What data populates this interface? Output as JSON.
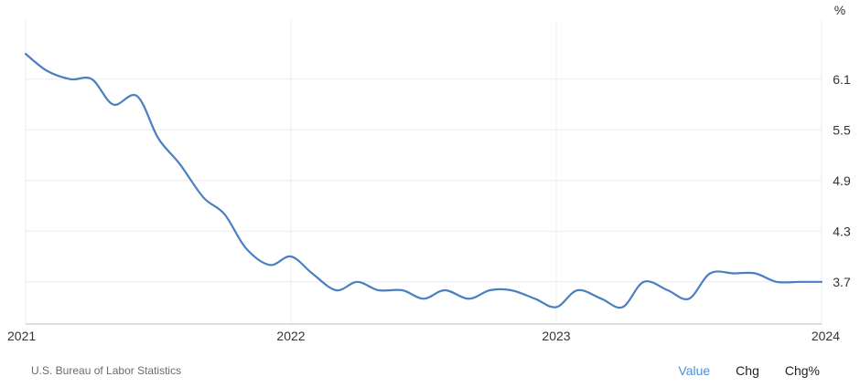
{
  "chart_data": {
    "type": "line",
    "unit": "%",
    "x_labels": [
      "2021",
      "2022",
      "2023",
      "2024"
    ],
    "y_ticks": [
      3.7,
      4.3,
      4.9,
      5.5,
      6.1
    ],
    "ylim": [
      3.2,
      6.8
    ],
    "xlim": [
      2021.0,
      2024.0
    ],
    "grid": true,
    "series": [
      {
        "color": "#4a7fc1",
        "points": [
          [
            2021.0,
            6.4
          ],
          [
            2021.08,
            6.2
          ],
          [
            2021.17,
            6.1
          ],
          [
            2021.25,
            6.1
          ],
          [
            2021.33,
            5.8
          ],
          [
            2021.42,
            5.9
          ],
          [
            2021.5,
            5.4
          ],
          [
            2021.58,
            5.1
          ],
          [
            2021.67,
            4.7
          ],
          [
            2021.75,
            4.5
          ],
          [
            2021.83,
            4.1
          ],
          [
            2021.92,
            3.9
          ],
          [
            2022.0,
            4.0
          ],
          [
            2022.08,
            3.8
          ],
          [
            2022.17,
            3.6
          ],
          [
            2022.25,
            3.7
          ],
          [
            2022.33,
            3.6
          ],
          [
            2022.42,
            3.6
          ],
          [
            2022.5,
            3.5
          ],
          [
            2022.58,
            3.6
          ],
          [
            2022.67,
            3.5
          ],
          [
            2022.75,
            3.6
          ],
          [
            2022.83,
            3.6
          ],
          [
            2022.92,
            3.5
          ],
          [
            2023.0,
            3.4
          ],
          [
            2023.08,
            3.6
          ],
          [
            2023.17,
            3.5
          ],
          [
            2023.25,
            3.4
          ],
          [
            2023.33,
            3.7
          ],
          [
            2023.42,
            3.6
          ],
          [
            2023.5,
            3.5
          ],
          [
            2023.58,
            3.8
          ],
          [
            2023.67,
            3.8
          ],
          [
            2023.75,
            3.8
          ],
          [
            2023.83,
            3.7
          ],
          [
            2023.92,
            3.7
          ],
          [
            2024.0,
            3.7
          ]
        ]
      }
    ]
  },
  "footer": {
    "source": "U.S. Bureau of Labor Statistics",
    "tabs": {
      "value": "Value",
      "chg": "Chg",
      "chgpct": "Chg%"
    },
    "active_color": "#4a90d9"
  }
}
